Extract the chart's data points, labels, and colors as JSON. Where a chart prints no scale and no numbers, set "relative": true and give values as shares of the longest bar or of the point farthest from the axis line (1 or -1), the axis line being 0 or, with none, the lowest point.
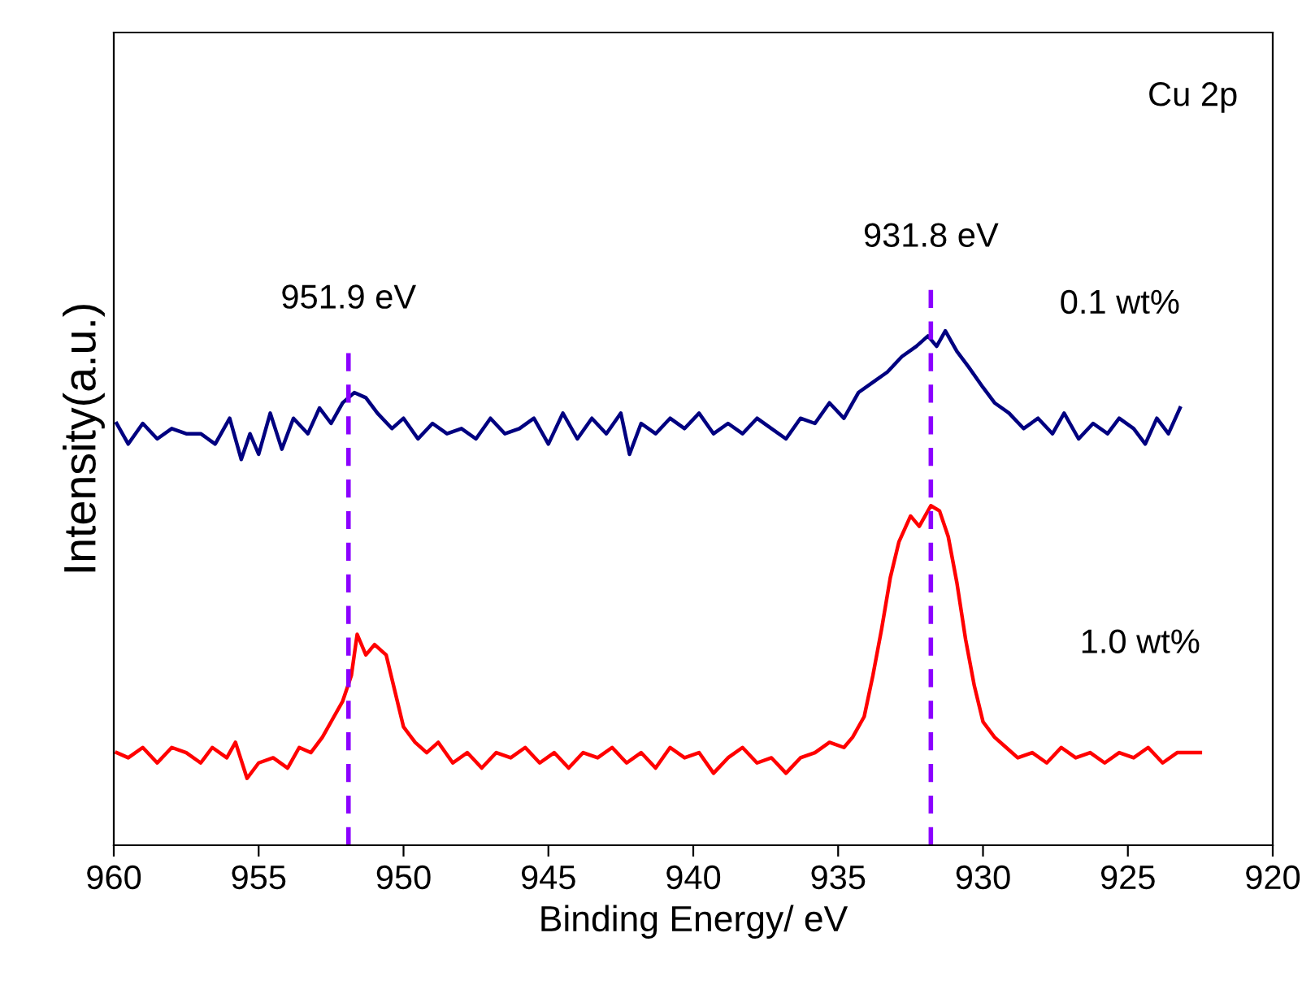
{
  "chart_data": {
    "type": "line",
    "relative": true,
    "xlabel": "Binding Energy/ eV",
    "ylabel": "Intensity(a.u.)",
    "xlim": [
      960,
      920
    ],
    "xticks": [
      960,
      955,
      950,
      945,
      940,
      935,
      930,
      925,
      920
    ],
    "grid": false,
    "legend": false,
    "tick_labels": "x",
    "line_style": "solid",
    "marker": "none",
    "annotations": [
      "Cu 2p"
    ],
    "ref_lines": [
      {
        "axis": "x",
        "value": 951.9,
        "label": "951.9 eV",
        "color": "#8b00ff",
        "line_style": "dashed"
      },
      {
        "axis": "x",
        "value": 931.8,
        "label": "931.8 eV",
        "color": "#8b00ff",
        "line_style": "dashed"
      }
    ],
    "series": [
      {
        "name": "0.1 wt%",
        "color": "#000080",
        "x": [
          959.9,
          959.5,
          959.0,
          958.5,
          958.0,
          957.5,
          957.0,
          956.5,
          956.0,
          955.6,
          955.3,
          955.0,
          954.6,
          954.2,
          953.8,
          953.3,
          952.9,
          952.5,
          952.1,
          951.7,
          951.3,
          950.9,
          950.4,
          950.0,
          949.5,
          949.0,
          948.5,
          948.0,
          947.5,
          947.0,
          946.5,
          946.0,
          945.5,
          945.0,
          944.5,
          944.0,
          943.5,
          943.0,
          942.5,
          942.2,
          941.8,
          941.3,
          940.8,
          940.3,
          939.8,
          939.3,
          938.8,
          938.3,
          937.8,
          937.3,
          936.8,
          936.3,
          935.8,
          935.3,
          934.8,
          934.3,
          933.8,
          933.3,
          932.8,
          932.3,
          931.9,
          931.6,
          931.3,
          930.9,
          930.5,
          930.0,
          929.6,
          929.1,
          928.6,
          928.1,
          927.6,
          927.2,
          926.7,
          926.2,
          925.7,
          925.3,
          924.8,
          924.4,
          924.0,
          923.6,
          923.2
        ],
        "values": [
          0.82,
          0.78,
          0.82,
          0.79,
          0.81,
          0.8,
          0.8,
          0.78,
          0.83,
          0.75,
          0.8,
          0.76,
          0.84,
          0.77,
          0.83,
          0.8,
          0.85,
          0.82,
          0.86,
          0.88,
          0.87,
          0.84,
          0.81,
          0.83,
          0.79,
          0.82,
          0.8,
          0.81,
          0.79,
          0.83,
          0.8,
          0.81,
          0.83,
          0.78,
          0.84,
          0.79,
          0.83,
          0.8,
          0.84,
          0.76,
          0.82,
          0.8,
          0.83,
          0.81,
          0.84,
          0.8,
          0.82,
          0.8,
          0.83,
          0.81,
          0.79,
          0.83,
          0.82,
          0.86,
          0.83,
          0.88,
          0.9,
          0.92,
          0.95,
          0.97,
          0.99,
          0.97,
          1.0,
          0.96,
          0.93,
          0.89,
          0.86,
          0.84,
          0.81,
          0.83,
          0.8,
          0.84,
          0.79,
          0.82,
          0.8,
          0.83,
          0.81,
          0.78,
          0.83,
          0.8,
          0.85
        ]
      },
      {
        "name": "1.0 wt%",
        "color": "#ff0000",
        "x": [
          959.9,
          959.5,
          959.0,
          958.5,
          958.0,
          957.5,
          957.0,
          956.6,
          956.1,
          955.8,
          955.4,
          955.0,
          954.5,
          954.0,
          953.6,
          953.2,
          952.8,
          952.4,
          952.1,
          951.8,
          951.6,
          951.3,
          951.0,
          950.6,
          950.3,
          950.0,
          949.6,
          949.2,
          948.8,
          948.3,
          947.8,
          947.3,
          946.8,
          946.3,
          945.8,
          945.3,
          944.8,
          944.3,
          943.8,
          943.3,
          942.8,
          942.3,
          941.8,
          941.3,
          940.8,
          940.3,
          939.8,
          939.3,
          938.8,
          938.3,
          937.8,
          937.3,
          936.8,
          936.3,
          935.8,
          935.3,
          934.8,
          934.5,
          934.1,
          933.8,
          933.5,
          933.2,
          932.9,
          932.5,
          932.2,
          931.8,
          931.5,
          931.2,
          930.9,
          930.6,
          930.3,
          930.0,
          929.6,
          929.2,
          928.8,
          928.3,
          927.8,
          927.3,
          926.8,
          926.3,
          925.8,
          925.3,
          924.8,
          924.3,
          923.8,
          923.3,
          922.5
        ],
        "values": [
          0.18,
          0.17,
          0.19,
          0.16,
          0.19,
          0.18,
          0.16,
          0.19,
          0.17,
          0.2,
          0.13,
          0.16,
          0.17,
          0.15,
          0.19,
          0.18,
          0.21,
          0.25,
          0.28,
          0.33,
          0.41,
          0.37,
          0.39,
          0.37,
          0.3,
          0.23,
          0.2,
          0.18,
          0.2,
          0.16,
          0.18,
          0.15,
          0.18,
          0.17,
          0.19,
          0.16,
          0.18,
          0.15,
          0.18,
          0.17,
          0.19,
          0.16,
          0.18,
          0.15,
          0.19,
          0.17,
          0.18,
          0.14,
          0.17,
          0.19,
          0.16,
          0.17,
          0.14,
          0.17,
          0.18,
          0.2,
          0.19,
          0.21,
          0.25,
          0.33,
          0.42,
          0.52,
          0.59,
          0.64,
          0.62,
          0.66,
          0.65,
          0.6,
          0.51,
          0.4,
          0.31,
          0.24,
          0.21,
          0.19,
          0.17,
          0.18,
          0.16,
          0.19,
          0.17,
          0.18,
          0.16,
          0.18,
          0.17,
          0.19,
          0.16,
          0.18,
          0.18
        ]
      }
    ]
  }
}
